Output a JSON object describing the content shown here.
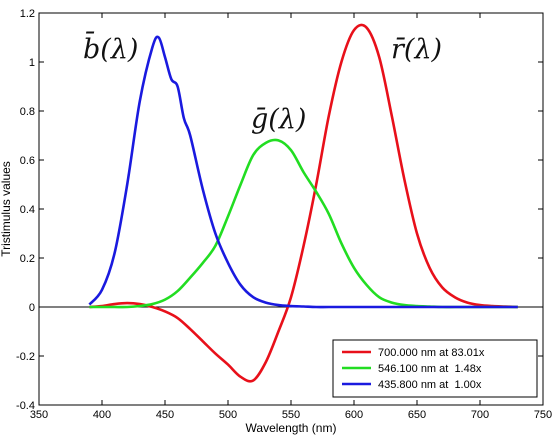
{
  "chart_data": {
    "type": "line",
    "xlabel": "Wavelength (nm)",
    "ylabel": "Tristimulus values",
    "xlim": [
      350,
      750
    ],
    "ylim": [
      -0.4,
      1.2
    ],
    "xticks": [
      350,
      400,
      450,
      500,
      550,
      600,
      650,
      700,
      750
    ],
    "yticks": [
      -0.4,
      -0.2,
      0,
      0.2,
      0.4,
      0.6,
      0.8,
      1,
      1.2
    ],
    "ytick_labels": [
      "-0.4",
      "-0.2",
      "0",
      "0.2",
      "0.4",
      "0.6",
      "0.8",
      "1",
      "1.2"
    ],
    "grid": false,
    "zero_line": true,
    "legend_position": "bottom-right",
    "series": [
      {
        "name": "700.000 nm at 83.01x",
        "curve_label": "r̄(λ)",
        "color": "#e8101a",
        "x": [
          390,
          400,
          410,
          420,
          430,
          440,
          450,
          460,
          470,
          480,
          490,
          500,
          510,
          520,
          530,
          540,
          550,
          560,
          570,
          580,
          590,
          600,
          610,
          620,
          630,
          640,
          650,
          660,
          670,
          680,
          690,
          700,
          710,
          720,
          730
        ],
        "y": [
          0.0,
          0.004,
          0.012,
          0.016,
          0.012,
          0.0,
          -0.018,
          -0.045,
          -0.09,
          -0.14,
          -0.19,
          -0.235,
          -0.285,
          -0.3,
          -0.225,
          -0.1,
          0.04,
          0.25,
          0.5,
          0.78,
          1.0,
          1.13,
          1.14,
          1.02,
          0.78,
          0.52,
          0.3,
          0.16,
          0.08,
          0.04,
          0.018,
          0.008,
          0.004,
          0.002,
          0.0
        ]
      },
      {
        "name": "546.100 nm at  1.48x",
        "curve_label": "ḡ(λ)",
        "color": "#22dd22",
        "x": [
          390,
          400,
          410,
          420,
          430,
          440,
          450,
          460,
          470,
          480,
          490,
          500,
          510,
          520,
          530,
          540,
          550,
          560,
          570,
          580,
          590,
          600,
          610,
          620,
          630,
          640,
          650,
          660,
          670,
          680,
          690,
          700,
          710,
          720,
          730
        ],
        "y": [
          0.0,
          0.0,
          0.0,
          0.0,
          0.004,
          0.012,
          0.03,
          0.065,
          0.12,
          0.18,
          0.25,
          0.37,
          0.5,
          0.62,
          0.67,
          0.68,
          0.64,
          0.55,
          0.47,
          0.38,
          0.26,
          0.16,
          0.09,
          0.04,
          0.018,
          0.008,
          0.004,
          0.002,
          0.0,
          0.0,
          0.0,
          0.0,
          0.0,
          0.0,
          0.0
        ]
      },
      {
        "name": "435.800 nm at  1.00x",
        "curve_label": "b̄(λ)",
        "color": "#1a1adf",
        "x": [
          390,
          400,
          410,
          420,
          430,
          440,
          445,
          450,
          455,
          460,
          465,
          470,
          480,
          490,
          500,
          510,
          520,
          530,
          540,
          550,
          560,
          570,
          580,
          600,
          630,
          660,
          690,
          730
        ],
        "y": [
          0.01,
          0.07,
          0.22,
          0.5,
          0.84,
          1.06,
          1.1,
          1.02,
          0.93,
          0.9,
          0.77,
          0.7,
          0.48,
          0.3,
          0.18,
          0.09,
          0.04,
          0.018,
          0.008,
          0.004,
          0.002,
          0.0,
          0.0,
          0.0,
          0.0,
          0.0,
          0.0,
          0.0
        ]
      }
    ]
  }
}
